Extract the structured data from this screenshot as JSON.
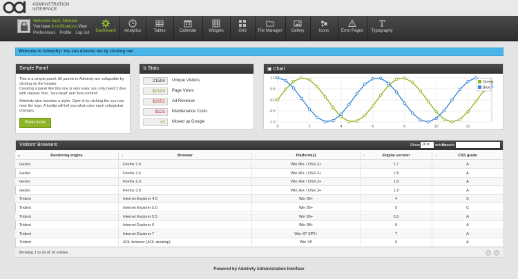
{
  "app": {
    "logo_line1": "ADMINISTRATION",
    "logo_line2": "INTERFACE"
  },
  "user": {
    "welcome": "Welcome back, Michael.",
    "notif_prefix": "You have ",
    "notif_count": "6 notifications",
    "notif_suffix": ".",
    "view": "View",
    "preferences": "Preferences",
    "profile": "Profile",
    "logout": "Log out"
  },
  "nav": [
    {
      "label": "Dashboard",
      "icon": "gear-icon"
    },
    {
      "label": "Analytics",
      "icon": "clock-icon"
    },
    {
      "label": "Tables",
      "icon": "table-icon"
    },
    {
      "label": "Calendar",
      "icon": "calendar-icon"
    },
    {
      "label": "Widgets",
      "icon": "widgets-icon"
    },
    {
      "label": "Grid",
      "icon": "grid-icon"
    },
    {
      "label": "File Manager",
      "icon": "folder-icon"
    },
    {
      "label": "Gallery",
      "icon": "image-icon"
    },
    {
      "label": "Icons",
      "icon": "icons-icon"
    },
    {
      "label": "Error Pages",
      "icon": "warning-icon"
    },
    {
      "label": "Typography",
      "icon": "typography-icon"
    }
  ],
  "alert": "Welcome to Adminity! You can dismiss me by clicking me!",
  "simple_panel": {
    "title": "Simple Panel",
    "p1": "This is a simple panel. All panels in Adminity are collapsible by clicking on the header.",
    "p2": "Creating a panel like this one is very easy, you only need 3 divs with classes 'box', 'box-head' and 'box-content'.",
    "p3": "Adminity also includes a styler. Open it by clicking the eye icon near the logo. A tooltip will tell you what color each colorpicker changes.",
    "button": "Read more"
  },
  "stats": {
    "title": "Stats",
    "rows": [
      {
        "value": "21594",
        "label": "Unique Visitors",
        "color": "#333333"
      },
      {
        "value": "$2100",
        "label": "Page Views",
        "color": "#7a9a1a"
      },
      {
        "value": "$2652",
        "label": "Ad Revenue",
        "color": "#c0392b"
      },
      {
        "value": "$125",
        "label": "Maintenance Costs",
        "color": "#c0392b"
      },
      {
        "value": "+2",
        "label": "Moved up Google",
        "color": "#7a9a1a"
      }
    ]
  },
  "chart_panel": {
    "title": "Chart"
  },
  "chart_data": {
    "type": "line",
    "x": [
      0,
      0.5,
      1,
      1.5,
      2,
      2.5,
      3,
      3.5,
      4,
      4.5,
      5,
      5.5,
      6,
      6.5,
      7,
      7.5,
      8,
      8.5,
      9,
      9.5,
      10,
      10.5,
      11,
      11.5,
      12,
      12.5,
      13,
      13.5
    ],
    "series": [
      {
        "name": "Green",
        "color": "#8db525",
        "values": [
          0,
          0.48,
          0.84,
          1.0,
          0.91,
          0.6,
          0.14,
          -0.35,
          -0.76,
          -0.98,
          -0.96,
          -0.71,
          -0.28,
          0.22,
          0.66,
          0.94,
          0.99,
          0.8,
          0.41,
          -0.08,
          -0.54,
          -0.88,
          -1.0,
          -0.88,
          -0.54,
          -0.07,
          0.42,
          0.8
        ]
      },
      {
        "name": "Blue",
        "color": "#3a87d4",
        "values": [
          1.0,
          0.88,
          0.54,
          0.07,
          -0.42,
          -0.8,
          -0.99,
          -0.94,
          -0.65,
          -0.21,
          0.28,
          0.71,
          0.96,
          0.98,
          0.75,
          0.35,
          -0.15,
          -0.6,
          -0.91,
          -1.0,
          -0.84,
          -0.48,
          0.0,
          0.48,
          0.84,
          1.0,
          0.91,
          0.6
        ]
      }
    ],
    "xlim": [
      0,
      13.5
    ],
    "ylim": [
      -1.0,
      1.0
    ],
    "xticks": [
      "0",
      "2",
      "4",
      "6",
      "8",
      "10",
      "12"
    ],
    "yticks": [
      "1.0",
      "0.5",
      "0.0",
      "-0.5",
      "-1.0"
    ],
    "grid": true,
    "legend": "top-right"
  },
  "browsers": {
    "title": "Visitors' Browsers",
    "show_label": "Show",
    "show_value": "10",
    "entries_label": "entries",
    "search_label": "Search:",
    "columns": [
      "Rendering engine",
      "Browser",
      "Platform(s)",
      "Engine version",
      "CSS grade"
    ],
    "rows": [
      [
        "Gecko",
        "Firefox 1.0",
        "Win 98+ / OSX.2+",
        "1.7",
        "A"
      ],
      [
        "Gecko",
        "Firefox 1.5",
        "Win 98+ / OSX.2+",
        "1.8",
        "A"
      ],
      [
        "Gecko",
        "Firefox 2.0",
        "Win 98+ / OSX.2+",
        "1.8",
        "A"
      ],
      [
        "Gecko",
        "Firefox 3.0",
        "Win 2k+ / OSX.3+",
        "1.9",
        "A"
      ],
      [
        "Trident",
        "Internet Explorer 4.0",
        "Win 95+",
        "4",
        "X"
      ],
      [
        "Trident",
        "Internet Explorer 5.0",
        "Win 95+",
        "5",
        "C"
      ],
      [
        "Trident",
        "Internet Explorer 5.5",
        "Win 95+",
        "5.5",
        "A"
      ],
      [
        "Trident",
        "Internet Explorer 6",
        "Win 98+",
        "6",
        "A"
      ],
      [
        "Trident",
        "Internet Explorer 7",
        "Win XP SP2+",
        "7",
        "A"
      ],
      [
        "Trident",
        "AOL browser (AOL desktop)",
        "Win XP",
        "6",
        "A"
      ]
    ],
    "info": "Showing 1 to 10 of 10 entries"
  },
  "footer": "Powered by Adminity Administration Interface"
}
